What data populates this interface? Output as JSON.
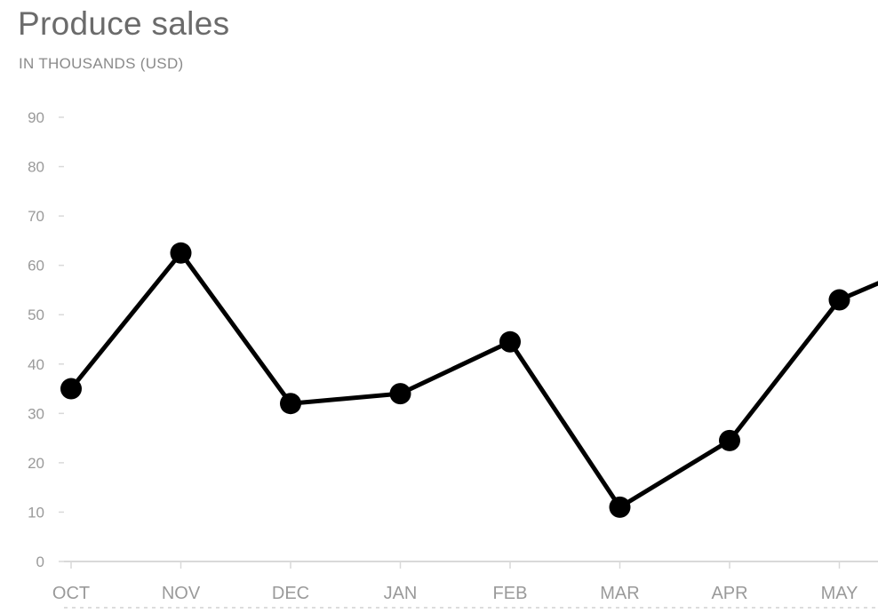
{
  "chart_data": {
    "type": "line",
    "title": "Produce sales",
    "subtitle": "IN THOUSANDS (USD)",
    "xlabel": "",
    "ylabel": "",
    "categories": [
      "OCT",
      "NOV",
      "DEC",
      "JAN",
      "FEB",
      "MAR",
      "APR",
      "MAY"
    ],
    "series": [
      {
        "values": [
          35,
          62.5,
          32,
          34,
          44.5,
          11,
          24.5,
          53
        ]
      }
    ],
    "continuation_value": 62.5,
    "ylim": [
      0,
      90
    ],
    "yticks": [
      0,
      10,
      20,
      30,
      40,
      50,
      60,
      70,
      80,
      90
    ],
    "grid": false,
    "legend": "none",
    "colors": {
      "line": "#000000",
      "axis": "#d9d9d9",
      "tick_text": "#9a9a9a",
      "title": "#6b6b6b"
    }
  }
}
